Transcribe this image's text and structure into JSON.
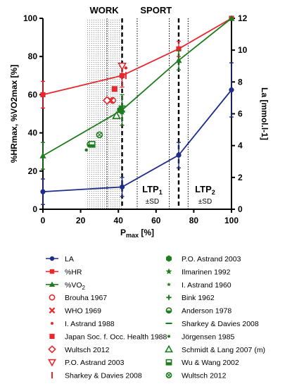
{
  "chart_data": {
    "type": "line",
    "xlabel": "P",
    "xlabel_sub": "max",
    "xlabel_unit": " [%]",
    "ylabel_left": "%HRmax, %VO2max [%]",
    "ylabel_right": "La [mmol.l-1]",
    "xlim": [
      0,
      100
    ],
    "ylim_left": [
      0,
      100
    ],
    "ylim_right": [
      0,
      12
    ],
    "x_ticks": [
      "0",
      "20",
      "40",
      "60",
      "80",
      "100"
    ],
    "y_ticks_left": [
      "0",
      "20",
      "40",
      "60",
      "80",
      "100"
    ],
    "y_ticks_right": [
      "0",
      "2",
      "4",
      "6",
      "8",
      "10",
      "12"
    ],
    "region_labels": {
      "work": "WORK",
      "sport": "SPORT"
    },
    "ltp1": {
      "label": "LTP",
      "sub": "1",
      "sd": "±SD",
      "x": 42,
      "sd_range": [
        34,
        50
      ]
    },
    "ltp2": {
      "label": "LTP",
      "sub": "2",
      "sd": "±SD",
      "x": 72,
      "sd_range": [
        67,
        77
      ]
    },
    "work_band": [
      23,
      42
    ],
    "series": [
      {
        "name": "LA",
        "axis": "right",
        "color": "#1f2d8a",
        "marker": "circle",
        "x": [
          0,
          42,
          72,
          100
        ],
        "y": [
          1.1,
          1.4,
          3.4,
          7.5
        ],
        "error": [
          0.8,
          0.6,
          0.8,
          1.7
        ]
      },
      {
        "name": "%HR",
        "axis": "left",
        "color": "#e8262c",
        "marker": "square",
        "x": [
          0,
          42,
          72,
          100
        ],
        "y": [
          60,
          70,
          84,
          100
        ],
        "error": [
          7,
          6,
          4,
          0
        ]
      },
      {
        "name": "%VO",
        "sub": "2",
        "axis": "left",
        "color": "#1e7d1e",
        "marker": "triangle",
        "x": [
          0,
          42,
          72,
          100
        ],
        "y": [
          28,
          52,
          78,
          100
        ],
        "error": [
          7,
          8,
          5,
          0
        ]
      }
    ],
    "references": [
      {
        "name": "Brouha 1967",
        "color": "#e8262c",
        "symbol": "circle-open",
        "x": 37,
        "y": 57
      },
      {
        "name": "WHO 1969",
        "color": "#e8262c",
        "symbol": "x",
        "x": 36,
        "y": 57
      },
      {
        "name": "I. Astrand 1988",
        "color": "#e8262c",
        "symbol": "dot",
        "x": 44,
        "y": 74
      },
      {
        "name": "Japan Soc. f. Occ. Health 1988",
        "color": "#e8262c",
        "symbol": "square",
        "x": 38,
        "y": 63
      },
      {
        "name": "Wultsch 2012",
        "color": "#e8262c",
        "symbol": "diamond-open",
        "x": 34,
        "y": 57
      },
      {
        "name": "P.O. Astrand 2003",
        "color": "#e8262c",
        "symbol": "triangle-down-open",
        "x": 42,
        "y": 75
      },
      {
        "name": "Sharkey & Davies 2008",
        "color": "#e8262c",
        "symbol": "vbar",
        "x": 44,
        "y": 70
      },
      {
        "name": "P.O. Astrand 2003",
        "color": "#1e7d1e",
        "symbol": "hexagon",
        "x": 41,
        "y": 52
      },
      {
        "name": "Ilmarinen 1992",
        "color": "#1e7d1e",
        "symbol": "star",
        "x": 42,
        "y": 51
      },
      {
        "name": "I. Astrand 1960",
        "color": "#1e7d1e",
        "symbol": "star-small",
        "x": 42,
        "y": 53
      },
      {
        "name": "Bink 1962",
        "color": "#1e7d1e",
        "symbol": "plus",
        "x": 42,
        "y": 51
      },
      {
        "name": "Anderson 1978",
        "color": "#1e7d1e",
        "symbol": "circle-half",
        "x": 25,
        "y": 34
      },
      {
        "name": "Sharkey & Davies 2008",
        "color": "#1e7d1e",
        "symbol": "dash",
        "x": 42,
        "y": 54
      },
      {
        "name": "Jörgensen 1985",
        "color": "#1e7d1e",
        "symbol": "dot",
        "x": 23,
        "y": 31
      },
      {
        "name": "Schmidt & Lang 2007 (m)",
        "color": "#1e7d1e",
        "symbol": "triangle-open",
        "x": 39,
        "y": 49
      },
      {
        "name": "Wu & Wang 2002",
        "color": "#1e7d1e",
        "symbol": "square-half",
        "x": 26,
        "y": 34
      },
      {
        "name": "Wultsch 2012",
        "color": "#1e7d1e",
        "symbol": "circle-x",
        "x": 30,
        "y": 39
      }
    ]
  }
}
